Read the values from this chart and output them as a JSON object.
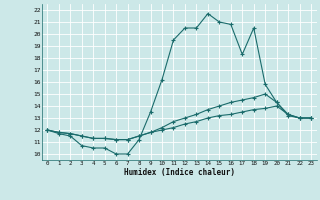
{
  "xlabel": "Humidex (Indice chaleur)",
  "xlim": [
    -0.5,
    23.5
  ],
  "ylim": [
    9.5,
    22.5
  ],
  "xticks": [
    0,
    1,
    2,
    3,
    4,
    5,
    6,
    7,
    8,
    9,
    10,
    11,
    12,
    13,
    14,
    15,
    16,
    17,
    18,
    19,
    20,
    21,
    22,
    23
  ],
  "yticks": [
    10,
    11,
    12,
    13,
    14,
    15,
    16,
    17,
    18,
    19,
    20,
    21,
    22
  ],
  "background_color": "#cce8e8",
  "grid_color": "#aad4d4",
  "line_color": "#1a6b6b",
  "line1_x": [
    0,
    1,
    2,
    3,
    4,
    5,
    6,
    7,
    8,
    9,
    10,
    11,
    12,
    13,
    14,
    15,
    16,
    17,
    18,
    19,
    20,
    21,
    22,
    23
  ],
  "line1_y": [
    12.0,
    11.7,
    11.5,
    10.7,
    10.5,
    10.5,
    10.0,
    10.0,
    11.2,
    13.5,
    16.2,
    19.5,
    20.5,
    20.5,
    21.7,
    21.0,
    20.8,
    18.3,
    20.5,
    15.8,
    14.3,
    13.2,
    13.0,
    13.0
  ],
  "line2_x": [
    0,
    1,
    2,
    3,
    4,
    5,
    6,
    7,
    8,
    9,
    10,
    11,
    12,
    13,
    14,
    15,
    16,
    17,
    18,
    19,
    20,
    21,
    22,
    23
  ],
  "line2_y": [
    12.0,
    11.8,
    11.7,
    11.5,
    11.3,
    11.3,
    11.2,
    11.2,
    11.5,
    11.8,
    12.2,
    12.7,
    13.0,
    13.3,
    13.7,
    14.0,
    14.3,
    14.5,
    14.7,
    15.0,
    14.3,
    13.3,
    13.0,
    13.0
  ],
  "line3_x": [
    0,
    1,
    2,
    3,
    4,
    5,
    6,
    7,
    8,
    9,
    10,
    11,
    12,
    13,
    14,
    15,
    16,
    17,
    18,
    19,
    20,
    21,
    22,
    23
  ],
  "line3_y": [
    12.0,
    11.8,
    11.7,
    11.5,
    11.3,
    11.3,
    11.2,
    11.2,
    11.5,
    11.8,
    12.0,
    12.2,
    12.5,
    12.7,
    13.0,
    13.2,
    13.3,
    13.5,
    13.7,
    13.8,
    14.0,
    13.3,
    13.0,
    13.0
  ]
}
